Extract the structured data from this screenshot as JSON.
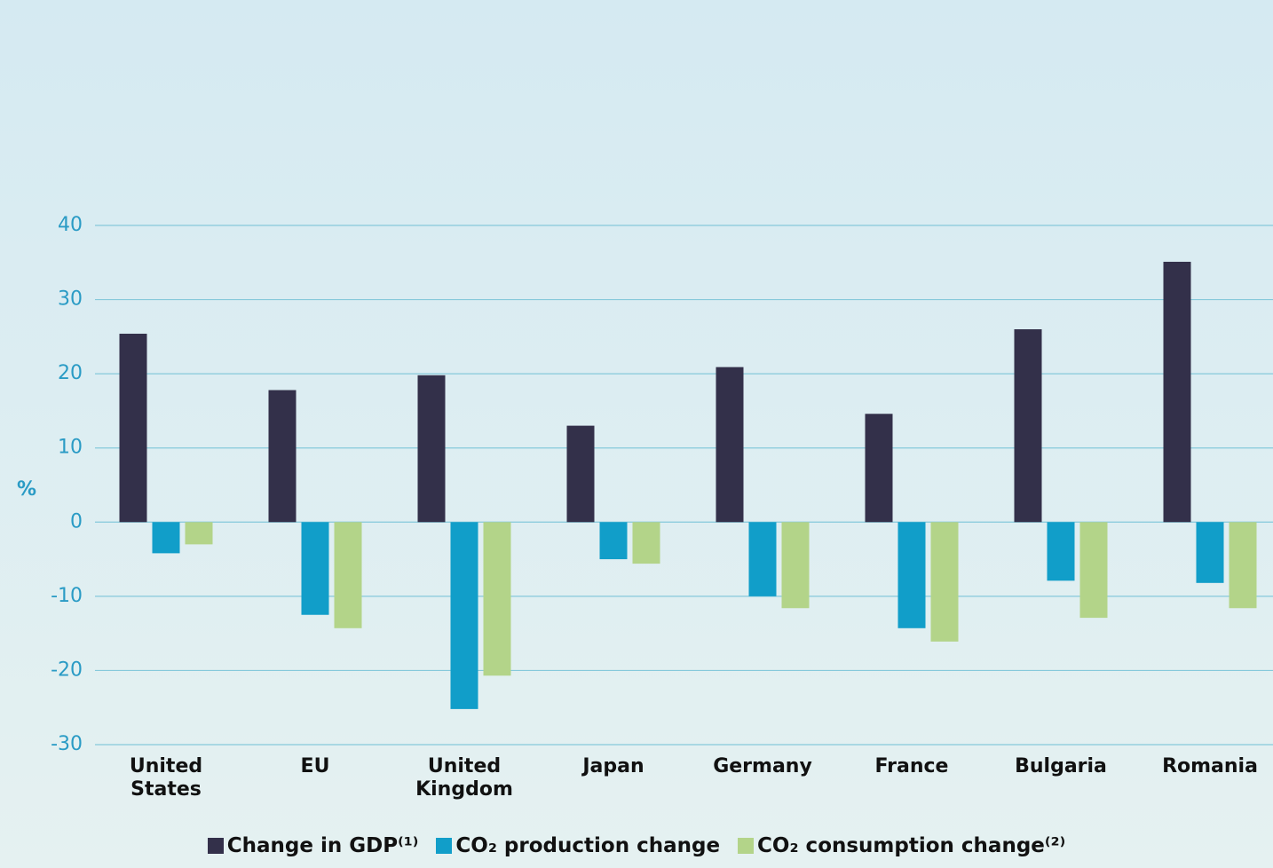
{
  "chart_data": {
    "type": "bar",
    "y_label": "%",
    "categories": [
      "United States",
      "EU",
      "United Kingdom",
      "Japan",
      "Germany",
      "France",
      "Bulgaria",
      "Romania"
    ],
    "series": [
      {
        "name": "Change in GDP⁽¹⁾",
        "color": "#33304a",
        "values": [
          25.4,
          17.8,
          19.8,
          13.0,
          20.9,
          14.6,
          26.0,
          35.1
        ]
      },
      {
        "name": "CO₂ production change",
        "color": "#119ec9",
        "values": [
          -4.2,
          -12.5,
          -25.2,
          -5.0,
          -10.0,
          -14.3,
          -7.9,
          -8.2
        ]
      },
      {
        "name": "CO₂ consumption change⁽²⁾",
        "color": "#b3d489",
        "values": [
          -3.0,
          -14.3,
          -20.7,
          -5.6,
          -11.6,
          -16.1,
          -12.9,
          -11.6
        ]
      }
    ],
    "ylim": [
      -30,
      40
    ],
    "yticks": [
      -30,
      -20,
      -10,
      0,
      10,
      20,
      30,
      40
    ],
    "grid": true
  }
}
